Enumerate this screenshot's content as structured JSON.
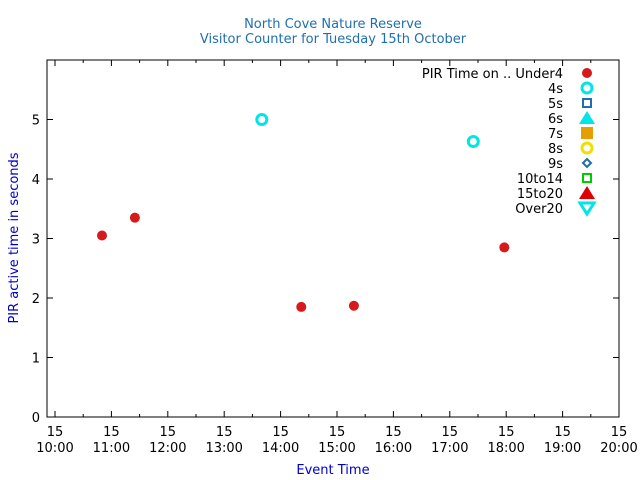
{
  "chart_data": {
    "type": "scatter",
    "title": "North Cove Nature Reserve",
    "subtitle": "Visitor Counter for Tuesday 15th October",
    "xlabel": "Event Time",
    "ylabel": "PIR active time in seconds",
    "xlim": [
      "10:00",
      "20:00"
    ],
    "ylim": [
      0,
      6
    ],
    "x_ticks": [
      {
        "day": "15",
        "time": "10:00"
      },
      {
        "day": "15",
        "time": "11:00"
      },
      {
        "day": "15",
        "time": "12:00"
      },
      {
        "day": "15",
        "time": "13:00"
      },
      {
        "day": "15",
        "time": "14:00"
      },
      {
        "day": "15",
        "time": "15:00"
      },
      {
        "day": "15",
        "time": "16:00"
      },
      {
        "day": "15",
        "time": "17:00"
      },
      {
        "day": "15",
        "time": "18:00"
      },
      {
        "day": "15",
        "time": "19:00"
      },
      {
        "day": "15",
        "time": "20:00"
      }
    ],
    "y_ticks": [
      "0",
      "1",
      "2",
      "3",
      "4",
      "5"
    ],
    "legend_title": "PIR Time on ..",
    "legend_position": "top-right",
    "series": [
      {
        "name": "Under4",
        "color": "#d7191c",
        "marker": "filled-circle",
        "points": [
          {
            "x": "10:50",
            "y": 3.05
          },
          {
            "x": "11:25",
            "y": 3.35
          },
          {
            "x": "14:22",
            "y": 1.85
          },
          {
            "x": "15:18",
            "y": 1.87
          },
          {
            "x": "17:58",
            "y": 2.85
          }
        ]
      },
      {
        "name": "4s",
        "color": "#00e5e5",
        "marker": "open-circle",
        "points": [
          {
            "x": "13:40",
            "y": 5.0
          },
          {
            "x": "17:25",
            "y": 4.63
          }
        ]
      },
      {
        "name": "5s",
        "color": "#1f6fb0",
        "marker": "open-square",
        "points": []
      },
      {
        "name": "6s",
        "color": "#00e5e5",
        "marker": "filled-triangle-up",
        "points": []
      },
      {
        "name": "7s",
        "color": "#e69f00",
        "marker": "filled-square",
        "points": []
      },
      {
        "name": "8s",
        "color": "#f0e000",
        "marker": "open-circle",
        "points": []
      },
      {
        "name": "9s",
        "color": "#1f6fb0",
        "marker": "open-diamond",
        "points": []
      },
      {
        "name": "10to14",
        "color": "#00cc00",
        "marker": "open-square",
        "points": []
      },
      {
        "name": "15to20",
        "color": "#e00000",
        "marker": "filled-triangle-up",
        "points": []
      },
      {
        "name": "Over20",
        "color": "#00e5e5",
        "marker": "open-triangle-down",
        "points": []
      }
    ]
  }
}
